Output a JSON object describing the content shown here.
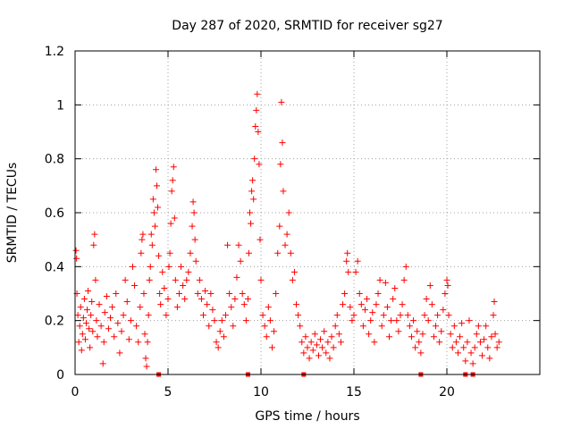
{
  "chart_data": {
    "type": "scatter",
    "title": "Day 287 of 2020, SRMTID for receiver sg27",
    "xlabel": "GPS time / hours",
    "ylabel": "SRMTID / TECUs",
    "xlim": [
      0,
      25
    ],
    "ylim": [
      0,
      1.2
    ],
    "grid": true,
    "marker": "+",
    "color": "#ff0000",
    "x_ticks": [
      0,
      5,
      10,
      15,
      20
    ],
    "x_tick_labels": [
      "0",
      "5",
      "10",
      "15",
      "20"
    ],
    "y_ticks": [
      0,
      0.2,
      0.4,
      0.6,
      0.8,
      1.0,
      1.2
    ],
    "y_tick_labels": [
      "0",
      "0.2",
      "0.4",
      "0.6",
      "0.8",
      "1",
      "1.2"
    ],
    "gap_markers_x": [
      4.5,
      9.3,
      12.3,
      18.6,
      21.0,
      21.4
    ],
    "series": [
      {
        "name": "SRMTID",
        "points": [
          [
            0.05,
            0.46
          ],
          [
            0.08,
            0.43
          ],
          [
            0.1,
            0.3
          ],
          [
            0.15,
            0.22
          ],
          [
            0.2,
            0.12
          ],
          [
            0.25,
            0.18
          ],
          [
            0.3,
            0.25
          ],
          [
            0.35,
            0.09
          ],
          [
            0.4,
            0.15
          ],
          [
            0.45,
            0.21
          ],
          [
            0.5,
            0.28
          ],
          [
            0.55,
            0.13
          ],
          [
            0.6,
            0.19
          ],
          [
            0.65,
            0.24
          ],
          [
            0.7,
            0.31
          ],
          [
            0.75,
            0.17
          ],
          [
            0.8,
            0.1
          ],
          [
            0.85,
            0.22
          ],
          [
            0.9,
            0.27
          ],
          [
            0.95,
            0.16
          ],
          [
            1.0,
            0.48
          ],
          [
            1.05,
            0.52
          ],
          [
            1.1,
            0.35
          ],
          [
            1.15,
            0.2
          ],
          [
            1.2,
            0.14
          ],
          [
            1.3,
            0.26
          ],
          [
            1.4,
            0.18
          ],
          [
            1.5,
            0.04
          ],
          [
            1.55,
            0.12
          ],
          [
            1.6,
            0.23
          ],
          [
            1.7,
            0.29
          ],
          [
            1.8,
            0.17
          ],
          [
            1.9,
            0.21
          ],
          [
            2.0,
            0.25
          ],
          [
            2.1,
            0.14
          ],
          [
            2.2,
            0.3
          ],
          [
            2.3,
            0.19
          ],
          [
            2.4,
            0.08
          ],
          [
            2.5,
            0.16
          ],
          [
            2.6,
            0.22
          ],
          [
            2.7,
            0.35
          ],
          [
            2.8,
            0.27
          ],
          [
            2.9,
            0.13
          ],
          [
            3.0,
            0.2
          ],
          [
            3.1,
            0.4
          ],
          [
            3.2,
            0.33
          ],
          [
            3.3,
            0.18
          ],
          [
            3.4,
            0.12
          ],
          [
            3.5,
            0.25
          ],
          [
            3.55,
            0.45
          ],
          [
            3.6,
            0.5
          ],
          [
            3.65,
            0.52
          ],
          [
            3.7,
            0.3
          ],
          [
            3.75,
            0.15
          ],
          [
            3.8,
            0.06
          ],
          [
            3.85,
            0.03
          ],
          [
            3.9,
            0.12
          ],
          [
            3.95,
            0.22
          ],
          [
            4.0,
            0.35
          ],
          [
            4.05,
            0.4
          ],
          [
            4.1,
            0.52
          ],
          [
            4.15,
            0.48
          ],
          [
            4.2,
            0.65
          ],
          [
            4.25,
            0.6
          ],
          [
            4.3,
            0.55
          ],
          [
            4.35,
            0.76
          ],
          [
            4.4,
            0.7
          ],
          [
            4.45,
            0.62
          ],
          [
            4.5,
            0.44
          ],
          [
            4.55,
            0.3
          ],
          [
            4.6,
            0.26
          ],
          [
            4.7,
            0.38
          ],
          [
            4.8,
            0.32
          ],
          [
            4.9,
            0.22
          ],
          [
            5.0,
            0.28
          ],
          [
            5.05,
            0.4
          ],
          [
            5.1,
            0.45
          ],
          [
            5.15,
            0.56
          ],
          [
            5.2,
            0.68
          ],
          [
            5.25,
            0.72
          ],
          [
            5.3,
            0.77
          ],
          [
            5.35,
            0.58
          ],
          [
            5.4,
            0.35
          ],
          [
            5.5,
            0.25
          ],
          [
            5.6,
            0.3
          ],
          [
            5.7,
            0.4
          ],
          [
            5.8,
            0.33
          ],
          [
            5.9,
            0.28
          ],
          [
            6.0,
            0.35
          ],
          [
            6.1,
            0.38
          ],
          [
            6.2,
            0.45
          ],
          [
            6.3,
            0.55
          ],
          [
            6.35,
            0.64
          ],
          [
            6.4,
            0.6
          ],
          [
            6.45,
            0.5
          ],
          [
            6.5,
            0.42
          ],
          [
            6.6,
            0.3
          ],
          [
            6.7,
            0.35
          ],
          [
            6.8,
            0.28
          ],
          [
            6.9,
            0.22
          ],
          [
            7.0,
            0.31
          ],
          [
            7.1,
            0.26
          ],
          [
            7.2,
            0.18
          ],
          [
            7.3,
            0.3
          ],
          [
            7.4,
            0.24
          ],
          [
            7.5,
            0.2
          ],
          [
            7.6,
            0.12
          ],
          [
            7.7,
            0.1
          ],
          [
            7.8,
            0.16
          ],
          [
            7.9,
            0.2
          ],
          [
            8.0,
            0.14
          ],
          [
            8.1,
            0.22
          ],
          [
            8.2,
            0.48
          ],
          [
            8.3,
            0.3
          ],
          [
            8.4,
            0.25
          ],
          [
            8.5,
            0.18
          ],
          [
            8.6,
            0.28
          ],
          [
            8.7,
            0.36
          ],
          [
            8.8,
            0.48
          ],
          [
            8.9,
            0.42
          ],
          [
            9.0,
            0.3
          ],
          [
            9.1,
            0.26
          ],
          [
            9.2,
            0.2
          ],
          [
            9.3,
            0.28
          ],
          [
            9.35,
            0.45
          ],
          [
            9.4,
            0.6
          ],
          [
            9.45,
            0.56
          ],
          [
            9.5,
            0.68
          ],
          [
            9.55,
            0.72
          ],
          [
            9.6,
            0.65
          ],
          [
            9.65,
            0.8
          ],
          [
            9.7,
            0.92
          ],
          [
            9.75,
            0.98
          ],
          [
            9.8,
            1.04
          ],
          [
            9.85,
            0.9
          ],
          [
            9.9,
            0.78
          ],
          [
            9.95,
            0.5
          ],
          [
            10.0,
            0.35
          ],
          [
            10.1,
            0.22
          ],
          [
            10.2,
            0.18
          ],
          [
            10.3,
            0.14
          ],
          [
            10.4,
            0.25
          ],
          [
            10.5,
            0.2
          ],
          [
            10.6,
            0.1
          ],
          [
            10.7,
            0.16
          ],
          [
            10.8,
            0.3
          ],
          [
            10.9,
            0.45
          ],
          [
            11.0,
            0.55
          ],
          [
            11.05,
            0.78
          ],
          [
            11.1,
            1.01
          ],
          [
            11.15,
            0.86
          ],
          [
            11.2,
            0.68
          ],
          [
            11.3,
            0.48
          ],
          [
            11.4,
            0.52
          ],
          [
            11.5,
            0.6
          ],
          [
            11.6,
            0.45
          ],
          [
            11.7,
            0.35
          ],
          [
            11.8,
            0.38
          ],
          [
            11.9,
            0.26
          ],
          [
            12.0,
            0.22
          ],
          [
            12.1,
            0.18
          ],
          [
            12.2,
            0.12
          ],
          [
            12.3,
            0.08
          ],
          [
            12.4,
            0.14
          ],
          [
            12.5,
            0.1
          ],
          [
            12.6,
            0.06
          ],
          [
            12.7,
            0.12
          ],
          [
            12.8,
            0.09
          ],
          [
            12.9,
            0.15
          ],
          [
            13.0,
            0.11
          ],
          [
            13.1,
            0.07
          ],
          [
            13.2,
            0.13
          ],
          [
            13.3,
            0.1
          ],
          [
            13.4,
            0.16
          ],
          [
            13.5,
            0.08
          ],
          [
            13.6,
            0.12
          ],
          [
            13.7,
            0.06
          ],
          [
            13.8,
            0.14
          ],
          [
            13.9,
            0.1
          ],
          [
            14.0,
            0.18
          ],
          [
            14.1,
            0.22
          ],
          [
            14.2,
            0.15
          ],
          [
            14.3,
            0.12
          ],
          [
            14.4,
            0.26
          ],
          [
            14.5,
            0.3
          ],
          [
            14.6,
            0.42
          ],
          [
            14.65,
            0.45
          ],
          [
            14.7,
            0.38
          ],
          [
            14.8,
            0.25
          ],
          [
            14.9,
            0.2
          ],
          [
            15.0,
            0.22
          ],
          [
            15.1,
            0.38
          ],
          [
            15.2,
            0.42
          ],
          [
            15.3,
            0.3
          ],
          [
            15.4,
            0.26
          ],
          [
            15.5,
            0.18
          ],
          [
            15.6,
            0.24
          ],
          [
            15.7,
            0.28
          ],
          [
            15.8,
            0.15
          ],
          [
            15.9,
            0.2
          ],
          [
            16.0,
            0.23
          ],
          [
            16.1,
            0.12
          ],
          [
            16.2,
            0.26
          ],
          [
            16.3,
            0.3
          ],
          [
            16.4,
            0.35
          ],
          [
            16.5,
            0.18
          ],
          [
            16.6,
            0.22
          ],
          [
            16.7,
            0.34
          ],
          [
            16.8,
            0.25
          ],
          [
            16.9,
            0.14
          ],
          [
            17.0,
            0.2
          ],
          [
            17.1,
            0.28
          ],
          [
            17.2,
            0.32
          ],
          [
            17.3,
            0.2
          ],
          [
            17.4,
            0.16
          ],
          [
            17.5,
            0.22
          ],
          [
            17.6,
            0.26
          ],
          [
            17.7,
            0.35
          ],
          [
            17.8,
            0.4
          ],
          [
            17.9,
            0.22
          ],
          [
            18.0,
            0.18
          ],
          [
            18.1,
            0.14
          ],
          [
            18.2,
            0.2
          ],
          [
            18.3,
            0.1
          ],
          [
            18.4,
            0.16
          ],
          [
            18.5,
            0.12
          ],
          [
            18.6,
            0.08
          ],
          [
            18.7,
            0.15
          ],
          [
            18.8,
            0.22
          ],
          [
            18.9,
            0.28
          ],
          [
            19.0,
            0.2
          ],
          [
            19.1,
            0.33
          ],
          [
            19.2,
            0.26
          ],
          [
            19.3,
            0.14
          ],
          [
            19.4,
            0.18
          ],
          [
            19.5,
            0.22
          ],
          [
            19.6,
            0.12
          ],
          [
            19.7,
            0.16
          ],
          [
            19.8,
            0.24
          ],
          [
            19.9,
            0.3
          ],
          [
            20.0,
            0.35
          ],
          [
            20.05,
            0.33
          ],
          [
            20.1,
            0.22
          ],
          [
            20.2,
            0.15
          ],
          [
            20.3,
            0.1
          ],
          [
            20.4,
            0.18
          ],
          [
            20.5,
            0.12
          ],
          [
            20.6,
            0.08
          ],
          [
            20.7,
            0.14
          ],
          [
            20.8,
            0.19
          ],
          [
            20.9,
            0.1
          ],
          [
            21.0,
            0.05
          ],
          [
            21.1,
            0.12
          ],
          [
            21.2,
            0.2
          ],
          [
            21.3,
            0.08
          ],
          [
            21.4,
            0.04
          ],
          [
            21.5,
            0.1
          ],
          [
            21.6,
            0.15
          ],
          [
            21.7,
            0.18
          ],
          [
            21.8,
            0.12
          ],
          [
            21.9,
            0.07
          ],
          [
            22.0,
            0.13
          ],
          [
            22.1,
            0.18
          ],
          [
            22.2,
            0.1
          ],
          [
            22.3,
            0.06
          ],
          [
            22.4,
            0.14
          ],
          [
            22.5,
            0.22
          ],
          [
            22.55,
            0.27
          ],
          [
            22.6,
            0.15
          ],
          [
            22.7,
            0.1
          ],
          [
            22.8,
            0.12
          ]
        ]
      }
    ]
  }
}
